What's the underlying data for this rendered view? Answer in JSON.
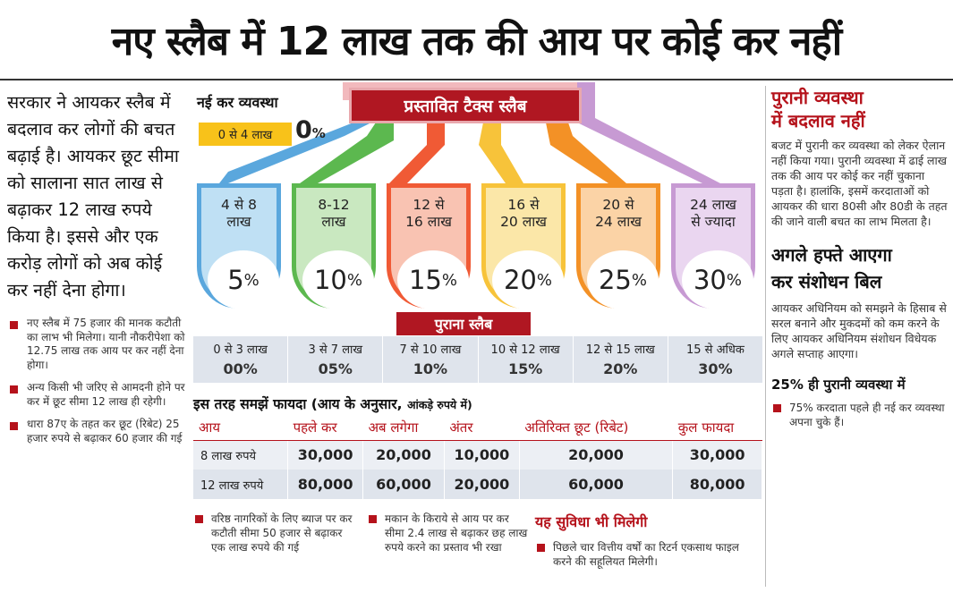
{
  "headline": "नए स्लैब में 12 लाख तक की आय पर कोई कर नहीं",
  "lead": "सरकार ने आयकर स्लैब में बदलाव कर लोगों की बचत बढ़ाई है। आयकर छूट सीमा को सालाना सात लाख से बढ़ाकर 12 लाख रुपये किया है। इससे और एक करोड़ लोगों को अब कोई कर नहीं देना होगा।",
  "bullets": [
    "नए स्लैब में 75 हजार की मानक कटौती का लाभ भी मिलेगा। यानी नौकरीपेशा को 12.75 लाख तक आय पर कर नहीं देना होगा।",
    "अन्य किसी भी जरिए से आमदनी होने पर कर में छूट सीमा 12 लाख ही रहेगी।",
    "धारा 87ए के तहत कर छूट (रिबेट) 25 हजार रुपये से बढ़ाकर 60 हजार की गई"
  ],
  "new_regime_label": "नई कर व्यवस्था",
  "proposed_label": "प्रस्तावित टैक्स स्लैब",
  "zero_slab": {
    "range": "0 से 4 लाख",
    "rate": "0",
    "pct": "%"
  },
  "slabs": [
    {
      "l1": "4 से 8",
      "l2": "लाख",
      "rate": "5",
      "color": "#5aa7dd"
    },
    {
      "l1": "8-12",
      "l2": "लाख",
      "rate": "10",
      "color": "#5cb84f"
    },
    {
      "l1": "12 से",
      "l2": "16 लाख",
      "rate": "15",
      "color": "#f05a35"
    },
    {
      "l1": "16 से",
      "l2": "20 लाख",
      "rate": "20",
      "color": "#f7c33a"
    },
    {
      "l1": "20 से",
      "l2": "24 लाख",
      "rate": "25",
      "color": "#f39126"
    },
    {
      "l1": "24 लाख",
      "l2": "से ज्यादा",
      "rate": "30",
      "color": "#c79ad3"
    }
  ],
  "pct_sign": "%",
  "old_slab_label": "पुराना स्लैब",
  "old_slabs": [
    {
      "range": "0 से 3 लाख",
      "rate": "00%"
    },
    {
      "range": "3 से 7 लाख",
      "rate": "05%"
    },
    {
      "range": "7 से 10 लाख",
      "rate": "10%"
    },
    {
      "range": "10 से 12 लाख",
      "rate": "15%"
    },
    {
      "range": "12 से 15 लाख",
      "rate": "20%"
    },
    {
      "range": "15 से अधिक",
      "rate": "30%"
    }
  ],
  "benefit_title": "इस तरह समझें फायदा (आय के अनुसार,",
  "benefit_title_small": "आंकड़े रुपये में)",
  "benefit_headers": [
    "आय",
    "पहले कर",
    "अब लगेगा",
    "अंतर",
    "अतिरिक्त छूट (रिबेट)",
    "कुल फायदा"
  ],
  "benefit_rows": [
    [
      "8 लाख रुपये",
      "30,000",
      "20,000",
      "10,000",
      "20,000",
      "30,000"
    ],
    [
      "12 लाख रुपये",
      "80,000",
      "60,000",
      "20,000",
      "60,000",
      "80,000"
    ]
  ],
  "bottom_notes": [
    "वरिष्ठ नागरिकों के लिए ब्याज पर कर कटौती सीमा 50 हजार से बढ़ाकर एक लाख रुपये की गई",
    "मकान के किराये से आय पर कर सीमा 2.4 लाख से बढ़ाकर छह लाख रुपये करने का प्रस्ताव भी रखा"
  ],
  "facility_title": "यह सुविधा भी मिलेगी",
  "facility_text": "पिछले चार वित्तीय वर्षों का रिटर्न एकसाथ फाइल करने की सहूलियत मिलेगी।",
  "right": {
    "title1": "पुरानी व्यवस्था",
    "title2": "में बदलाव नहीं",
    "para1": "बजट में पुरानी कर व्यवस्था को लेकर ऐलान नहीं किया गया। पुरानी व्यवस्था में ढाई लाख तक की आय पर कोई कर नहीं चुकाना पड़ता है। हालांकि, इसमें करदाताओं को आयकर की धारा 80सी और 80डी के तहत की जाने वाली बचत का लाभ मिलता है।",
    "head2a": "अगले हफ्ते आएगा",
    "head2b": "कर संशोधन बिल",
    "para2": "आयकर अधिनियम को समझने के हिसाब से सरल बनाने और मुकदमों को कम करने के लिए आयकर अधिनियम संशोधन विधेयक अगले सप्ताह आएगा।",
    "head3": "25% ही पुरानी व्यवस्था में",
    "note3": "75% करदाता पहले ही नई कर व्यवस्था अपना चुके हैं।"
  }
}
